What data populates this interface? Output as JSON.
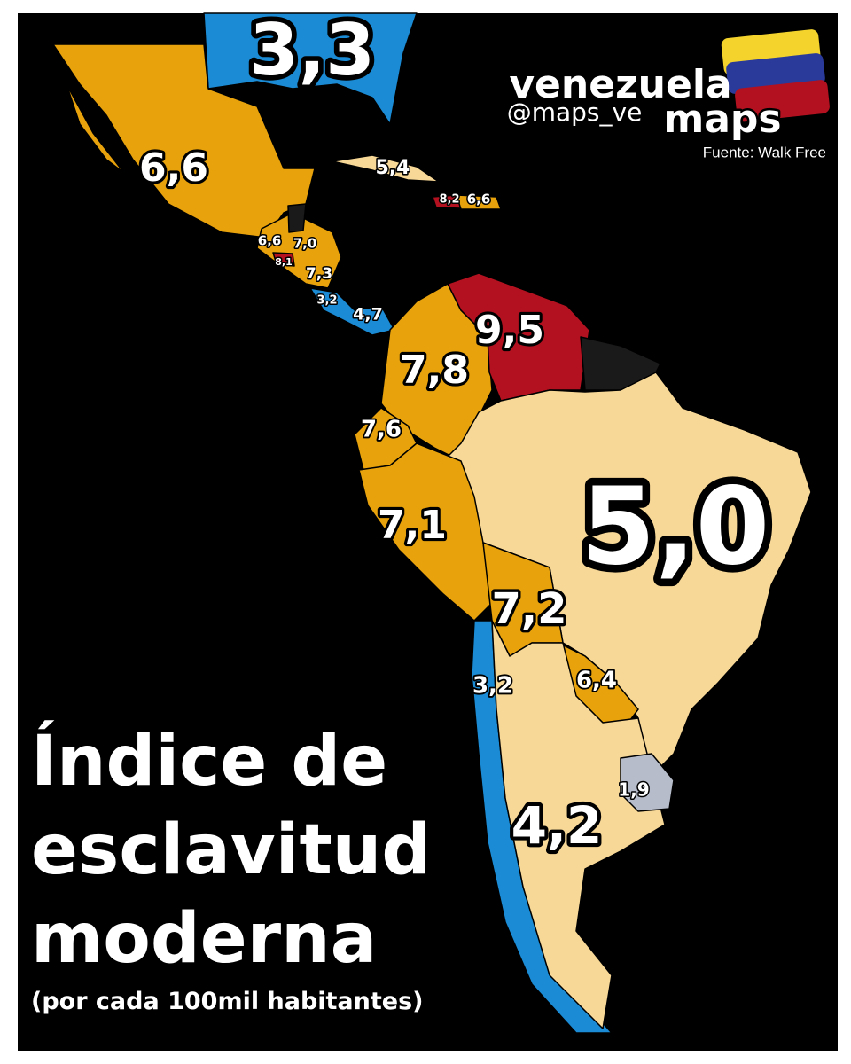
{
  "brand": {
    "line1": "venezuela",
    "line2": "maps",
    "handle": "@maps_ve"
  },
  "source": "Fuente: Walk Free",
  "title": {
    "lines": [
      "Índice de",
      "esclavitud",
      "moderna"
    ],
    "subtitle": "(por cada 100mil habitantes)"
  },
  "map": {
    "labels": [
      "3,3",
      "6,6",
      "5,4",
      "8,2",
      "6,6",
      "6,6",
      "7,0",
      "8,1",
      "7,3",
      "3,2",
      "4,7",
      "9,5",
      "7,8",
      "7,6",
      "7,1",
      "5,0",
      "7,2",
      "6,4",
      "3,2",
      "1,9",
      "4,2"
    ]
  }
}
